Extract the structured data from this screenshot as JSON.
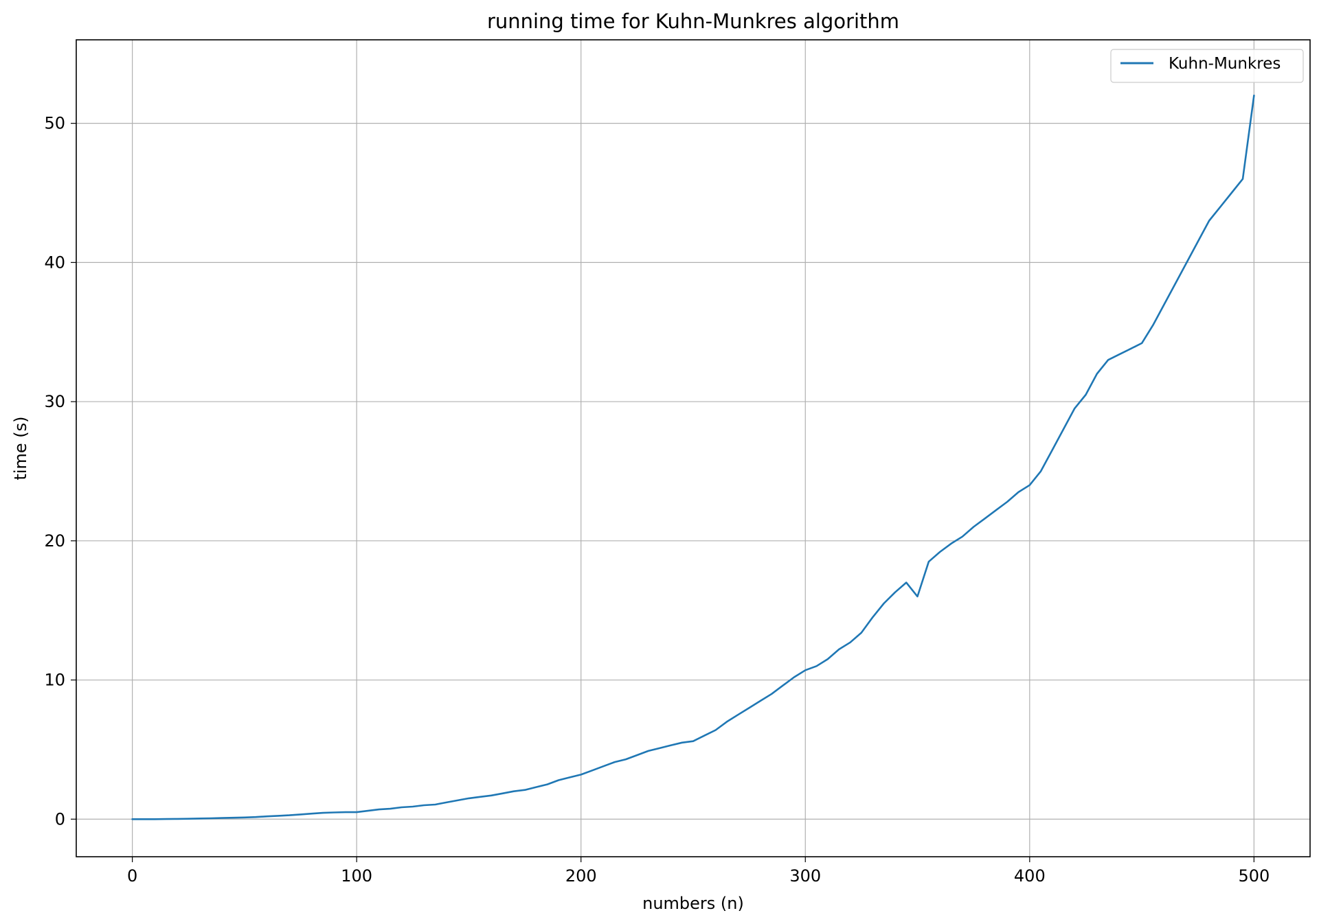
{
  "chart_data": {
    "type": "line",
    "title": "running time for Kuhn-Munkres algorithm",
    "xlabel": "numbers (n)",
    "ylabel": "time (s)",
    "xlim": [
      -25,
      525
    ],
    "ylim": [
      -2.7,
      56
    ],
    "xticks": [
      0,
      100,
      200,
      300,
      400,
      500
    ],
    "yticks": [
      0,
      10,
      20,
      30,
      40,
      50
    ],
    "grid": true,
    "legend_position": "upper right",
    "colors": {
      "series": "#1f77b4"
    },
    "series": [
      {
        "name": "Kuhn-Munkres",
        "x": [
          0,
          5,
          10,
          15,
          20,
          25,
          30,
          35,
          40,
          45,
          50,
          55,
          60,
          65,
          70,
          75,
          80,
          85,
          90,
          95,
          100,
          105,
          110,
          115,
          120,
          125,
          130,
          135,
          140,
          145,
          150,
          155,
          160,
          165,
          170,
          175,
          180,
          185,
          190,
          195,
          200,
          205,
          210,
          215,
          220,
          225,
          230,
          235,
          240,
          245,
          250,
          255,
          260,
          265,
          270,
          275,
          280,
          285,
          290,
          295,
          300,
          305,
          310,
          315,
          320,
          325,
          330,
          335,
          340,
          345,
          350,
          355,
          360,
          365,
          370,
          375,
          380,
          385,
          390,
          395,
          400,
          405,
          410,
          415,
          420,
          425,
          430,
          435,
          440,
          445,
          450,
          455,
          460,
          465,
          470,
          475,
          480,
          485,
          490,
          495,
          500
        ],
        "values": [
          0.0,
          0.0,
          0.0,
          0.01,
          0.02,
          0.03,
          0.05,
          0.06,
          0.08,
          0.1,
          0.12,
          0.15,
          0.2,
          0.24,
          0.28,
          0.34,
          0.4,
          0.45,
          0.48,
          0.5,
          0.5,
          0.6,
          0.7,
          0.75,
          0.85,
          0.9,
          1.0,
          1.05,
          1.2,
          1.35,
          1.5,
          1.6,
          1.7,
          1.85,
          2.0,
          2.1,
          2.3,
          2.5,
          2.8,
          3.0,
          3.2,
          3.5,
          3.8,
          4.1,
          4.3,
          4.6,
          4.9,
          5.1,
          5.3,
          5.5,
          5.6,
          6.0,
          6.4,
          7.0,
          7.5,
          8.0,
          8.5,
          9.0,
          9.6,
          10.2,
          10.7,
          11.0,
          11.5,
          12.2,
          12.7,
          13.4,
          14.5,
          15.5,
          16.3,
          17.0,
          16.0,
          18.5,
          19.2,
          19.8,
          20.3,
          21.0,
          21.6,
          22.2,
          22.8,
          23.5,
          24.0,
          25.0,
          26.5,
          28.0,
          29.5,
          30.5,
          32.0,
          33.0,
          33.4,
          33.8,
          34.2,
          35.5,
          37.0,
          38.5,
          40.0,
          41.5,
          43.0,
          44.0,
          45.0,
          46.0,
          52.0
        ]
      }
    ]
  }
}
